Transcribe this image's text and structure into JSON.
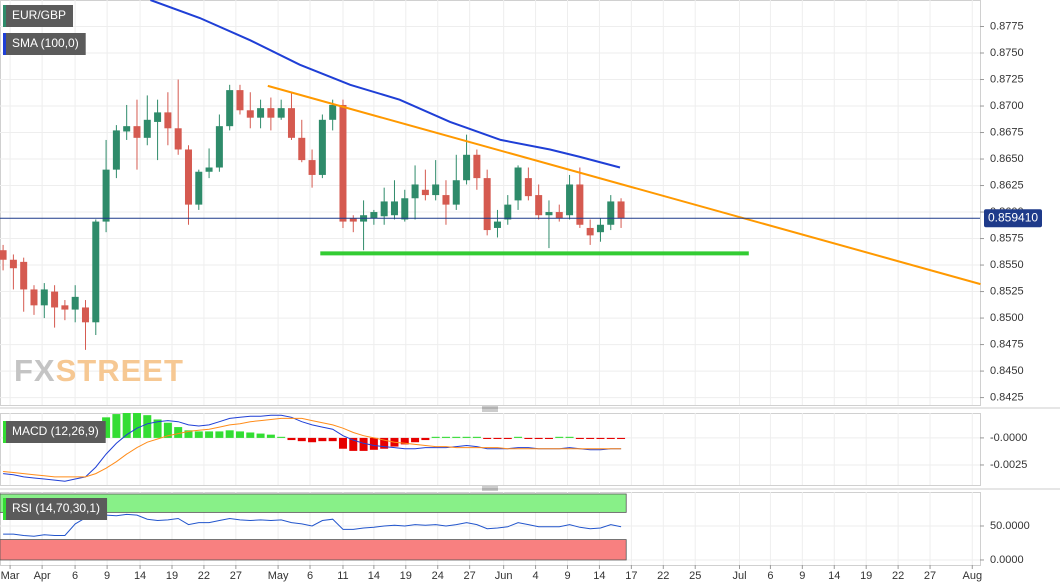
{
  "chart_data": [
    {
      "type": "candlestick",
      "symbol": "EUR/GBP",
      "watermark": [
        "FX",
        "STREET"
      ],
      "up_color": "#2e8b6a",
      "down_color": "#d55a50",
      "open": [
        0.8564,
        0.8555,
        0.8553,
        0.8527,
        0.8512,
        0.8525,
        0.8512,
        0.8508,
        0.851,
        0.8496,
        0.8591,
        0.864,
        0.8676,
        0.8681,
        0.867,
        0.8685,
        0.8694,
        0.8679,
        0.8659,
        0.8607,
        0.8638,
        0.8642,
        0.8681,
        0.8715,
        0.8696,
        0.8689,
        0.8698,
        0.8689,
        0.8698,
        0.867,
        0.8649,
        0.8635,
        0.8687,
        0.8701,
        0.8594,
        0.8591,
        0.8594,
        0.8596,
        0.8597,
        0.8593,
        0.8613,
        0.8621,
        0.8616,
        0.8616,
        0.8607,
        0.863,
        0.8654,
        0.8632,
        0.8585,
        0.8593,
        0.8611,
        0.8632,
        0.8616,
        0.8597,
        0.86,
        0.8597,
        0.8626,
        0.8585,
        0.8581,
        0.8588,
        0.861
      ],
      "high": [
        0.8569,
        0.856,
        0.8557,
        0.8531,
        0.8533,
        0.8531,
        0.8517,
        0.8531,
        0.8517,
        0.8593,
        0.8668,
        0.8682,
        0.8701,
        0.8706,
        0.871,
        0.8706,
        0.8713,
        0.8725,
        0.8663,
        0.864,
        0.866,
        0.8692,
        0.872,
        0.872,
        0.8713,
        0.8706,
        0.8708,
        0.8706,
        0.8713,
        0.8687,
        0.8659,
        0.8692,
        0.8706,
        0.8706,
        0.8597,
        0.8611,
        0.8602,
        0.8623,
        0.863,
        0.8621,
        0.8644,
        0.864,
        0.8649,
        0.863,
        0.8654,
        0.8673,
        0.8659,
        0.864,
        0.8602,
        0.8616,
        0.8644,
        0.8642,
        0.8626,
        0.8611,
        0.8607,
        0.8635,
        0.8642,
        0.8593,
        0.8594,
        0.8616,
        0.8613
      ],
      "low": [
        0.8545,
        0.8527,
        0.8506,
        0.8503,
        0.85,
        0.8491,
        0.8498,
        0.8496,
        0.847,
        0.8484,
        0.8581,
        0.8632,
        0.8668,
        0.864,
        0.8663,
        0.8649,
        0.8663,
        0.8654,
        0.8588,
        0.8602,
        0.8632,
        0.8638,
        0.8677,
        0.8692,
        0.8679,
        0.8679,
        0.8677,
        0.8687,
        0.8668,
        0.8647,
        0.8623,
        0.8632,
        0.8677,
        0.8585,
        0.8581,
        0.8564,
        0.8588,
        0.8588,
        0.8593,
        0.8591,
        0.8593,
        0.8611,
        0.8611,
        0.8588,
        0.8602,
        0.8626,
        0.8621,
        0.8578,
        0.8576,
        0.8588,
        0.8602,
        0.8611,
        0.8593,
        0.8566,
        0.8591,
        0.8593,
        0.8585,
        0.8569,
        0.8572,
        0.8583,
        0.8585
      ],
      "close": [
        0.8555,
        0.8547,
        0.8527,
        0.8512,
        0.8527,
        0.851,
        0.8508,
        0.852,
        0.8496,
        0.8591,
        0.864,
        0.8677,
        0.8681,
        0.867,
        0.8687,
        0.8694,
        0.8679,
        0.8659,
        0.8607,
        0.8638,
        0.8642,
        0.8681,
        0.8715,
        0.8696,
        0.8689,
        0.8698,
        0.8689,
        0.8698,
        0.867,
        0.8649,
        0.8635,
        0.8687,
        0.8701,
        0.8591,
        0.8591,
        0.8597,
        0.86,
        0.861,
        0.861,
        0.8613,
        0.8626,
        0.8616,
        0.8626,
        0.8607,
        0.863,
        0.8654,
        0.8632,
        0.8583,
        0.8591,
        0.8607,
        0.8642,
        0.8615,
        0.8597,
        0.86,
        0.8594,
        0.8626,
        0.8588,
        0.8578,
        0.8588,
        0.861,
        0.8594
      ],
      "series": [
        {
          "name": "SMA (100,0)",
          "color": "#1f3fd6",
          "x": [
            14.3,
            19.1,
            24,
            28.8,
            33.7,
            38.5,
            43.4,
            48.3,
            53.1,
            56,
            59.9
          ],
          "values": [
            0.88,
            0.8783,
            0.8762,
            0.8739,
            0.872,
            0.8706,
            0.8685,
            0.8668,
            0.8659,
            0.8652,
            0.8642
          ]
        }
      ],
      "lines": [
        {
          "color": "#ff9900",
          "x": [
            25.7,
            94.9
          ],
          "values": [
            0.8719,
            0.8532
          ]
        },
        {
          "color": "#33cc33",
          "x": [
            30.8,
            72.4
          ],
          "values": [
            0.8561,
            0.8561
          ]
        }
      ],
      "last_price": {
        "value": 0.85941,
        "label": "0.859410",
        "color": "#1e3a8a"
      },
      "xlim": [
        -0.3,
        94.85
      ],
      "ylim": [
        0.8418,
        0.88
      ],
      "yticks": [
        {
          "value": 0.8425,
          "label": "0.8425"
        },
        {
          "value": 0.845,
          "label": "0.8450"
        },
        {
          "value": 0.8475,
          "label": "0.8475"
        },
        {
          "value": 0.85,
          "label": "0.8500"
        },
        {
          "value": 0.8525,
          "label": "0.8525"
        },
        {
          "value": 0.855,
          "label": "0.8550"
        },
        {
          "value": 0.8575,
          "label": "0.8575"
        },
        {
          "value": 0.86,
          "label": "0.8600"
        },
        {
          "value": 0.8625,
          "label": "0.8625"
        },
        {
          "value": 0.865,
          "label": "0.8650"
        },
        {
          "value": 0.8675,
          "label": "0.8675"
        },
        {
          "value": 0.87,
          "label": "0.8700"
        },
        {
          "value": 0.8725,
          "label": "0.8725"
        },
        {
          "value": 0.875,
          "label": "0.8750"
        },
        {
          "value": 0.8775,
          "label": "0.8775"
        }
      ],
      "grid": true
    },
    {
      "type": "macd",
      "name": "MACD (12,26,9)",
      "legend_color": "#33dd33",
      "histogram": {
        "up_color": "#33dd33",
        "down_color": "#e60000",
        "values": [
          null,
          null,
          null,
          null,
          null,
          null,
          null,
          null,
          null,
          0.001,
          0.0019,
          0.0022,
          0.0023,
          0.0023,
          0.0021,
          0.0017,
          0.0014,
          0.001,
          0.0007,
          0.0006,
          0.0006,
          0.0006,
          0.0007,
          0.0006,
          0.0005,
          0.0004,
          0.0003,
          0.0001,
          -0.0002,
          -0.0003,
          -0.0004,
          -0.0003,
          -0.0003,
          -0.001,
          -0.0012,
          -0.0012,
          -0.0011,
          -0.001,
          -0.0008,
          -0.0006,
          -0.0004,
          -0.0002,
          0.0001,
          0.0001,
          0.0001,
          0.0001,
          0.0001,
          -0.0001,
          -0.0001,
          -0.0001,
          0.0001,
          -0.0001,
          -0.0001,
          -0.0001,
          0.0001,
          0.0001,
          -0.0001,
          -0.0001,
          -0.0001,
          -0.0001,
          -0.0001
        ]
      },
      "series": [
        {
          "color": "#1f3fd6",
          "values": [
            -0.0033,
            -0.0034,
            -0.0036,
            -0.0037,
            -0.0038,
            -0.0039,
            -0.004,
            -0.0038,
            -0.0036,
            -0.0027,
            -0.0015,
            -0.0005,
            0.0003,
            0.0009,
            0.0013,
            0.0015,
            0.0016,
            0.0015,
            0.0012,
            0.0011,
            0.0012,
            0.0015,
            0.0018,
            0.0019,
            0.002,
            0.002,
            0.0021,
            0.0021,
            0.0019,
            0.0015,
            0.0012,
            0.001,
            0.0008,
            0.0002,
            -0.0002,
            -0.0005,
            -0.0007,
            -0.0008,
            -0.0009,
            -0.001,
            -0.001,
            -0.0009,
            -0.0009,
            -0.0009,
            -0.0008,
            -0.0007,
            -0.0008,
            -0.001,
            -0.001,
            -0.001,
            -0.0009,
            -0.0009,
            -0.001,
            -0.001,
            -0.001,
            -0.0009,
            -0.001,
            -0.0011,
            -0.0011,
            -0.001,
            -0.001
          ]
        },
        {
          "color": "#ff8c1a",
          "values": [
            -0.0031,
            -0.0032,
            -0.0033,
            -0.0034,
            -0.0035,
            -0.0036,
            -0.0036,
            -0.0036,
            -0.0036,
            -0.0033,
            -0.0028,
            -0.0022,
            -0.0015,
            -0.0009,
            -0.0004,
            -0.0001,
            0.0002,
            0.0004,
            0.0006,
            0.0007,
            0.0008,
            0.001,
            0.0012,
            0.0013,
            0.0015,
            0.0016,
            0.0017,
            0.0018,
            0.0018,
            0.0018,
            0.0016,
            0.0014,
            0.0012,
            0.0009,
            0.0005,
            0.0002,
            0.0,
            -0.0002,
            -0.0004,
            -0.0005,
            -0.0006,
            -0.0007,
            -0.0008,
            -0.0008,
            -0.0009,
            -0.0009,
            -0.0009,
            -0.0009,
            -0.0009,
            -0.001,
            -0.001,
            -0.001,
            -0.001,
            -0.001,
            -0.001,
            -0.001,
            -0.001,
            -0.001,
            -0.001,
            -0.001,
            -0.001
          ]
        }
      ],
      "xlim": [
        -0.3,
        94.85
      ],
      "ylim": [
        -0.00435,
        0.0023
      ],
      "yticks": [
        {
          "value": -0.0025,
          "label": "-0.0025"
        },
        {
          "value": 0,
          "label": "-0.0000"
        }
      ],
      "grid": true
    },
    {
      "type": "rsi",
      "name": "RSI (14,70,30,1)",
      "legend_color": "#33dd33",
      "bands": [
        {
          "range": [
            70,
            100
          ],
          "color": "#88f088"
        },
        {
          "range": [
            0,
            30
          ],
          "color": "#f88080"
        }
      ],
      "series": [
        {
          "color": "#2255cc",
          "values": [
            38,
            38,
            36,
            35,
            37,
            36,
            36,
            53,
            62,
            66,
            66,
            65,
            67,
            66,
            60,
            58,
            59,
            61,
            52,
            55,
            55,
            58,
            61,
            59,
            58,
            59,
            58,
            59,
            55,
            53,
            50,
            58,
            60,
            45,
            45,
            47,
            48,
            50,
            51,
            50,
            52,
            51,
            52,
            50,
            52,
            55,
            52,
            46,
            47,
            49,
            55,
            52,
            49,
            49,
            49,
            52,
            48,
            46,
            47,
            52,
            49
          ]
        }
      ],
      "xlim": [
        -0.3,
        94.85
      ],
      "ylim": [
        -7.4,
        100
      ],
      "yticks": [
        {
          "value": 0,
          "label": "0.0000"
        },
        {
          "value": 50,
          "label": "50.0000"
        }
      ],
      "xticks": [
        {
          "value": 0.68,
          "label": "Mar"
        },
        {
          "value": 3.79,
          "label": "Apr"
        },
        {
          "value": 6.99,
          "label": "6"
        },
        {
          "value": 10.1,
          "label": "9"
        },
        {
          "value": 13.3,
          "label": "14"
        },
        {
          "value": 16.4,
          "label": "19"
        },
        {
          "value": 19.5,
          "label": "22"
        },
        {
          "value": 22.6,
          "label": "27"
        },
        {
          "value": 26.7,
          "label": "May"
        },
        {
          "value": 29.8,
          "label": "6"
        },
        {
          "value": 33,
          "label": "11"
        },
        {
          "value": 36,
          "label": "14"
        },
        {
          "value": 39.1,
          "label": "19"
        },
        {
          "value": 42.2,
          "label": "24"
        },
        {
          "value": 45.3,
          "label": "27"
        },
        {
          "value": 48.6,
          "label": "Jun"
        },
        {
          "value": 51.7,
          "label": "4"
        },
        {
          "value": 54.8,
          "label": "9"
        },
        {
          "value": 57.9,
          "label": "14"
        },
        {
          "value": 61,
          "label": "17"
        },
        {
          "value": 64.1,
          "label": "22"
        },
        {
          "value": 67.2,
          "label": "25"
        },
        {
          "value": 71.5,
          "label": "Jul"
        },
        {
          "value": 74.5,
          "label": "6"
        },
        {
          "value": 77.6,
          "label": "9"
        },
        {
          "value": 80.7,
          "label": "14"
        },
        {
          "value": 83.8,
          "label": "19"
        },
        {
          "value": 86.9,
          "label": "22"
        },
        {
          "value": 90,
          "label": "27"
        },
        {
          "value": 94.1,
          "label": "Aug"
        }
      ],
      "grid": true
    }
  ]
}
